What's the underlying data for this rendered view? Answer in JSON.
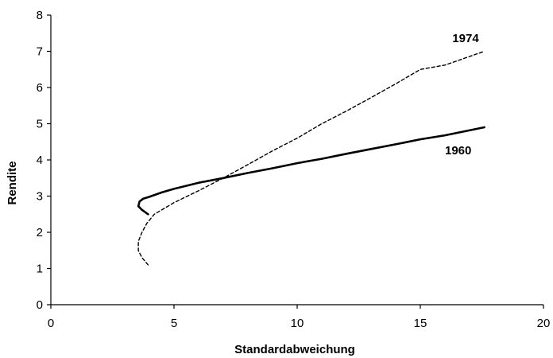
{
  "chart_data": {
    "type": "line",
    "title": "",
    "xlabel": "Standardabweichung",
    "ylabel": "Rendite",
    "xlim": [
      0,
      20
    ],
    "ylim": [
      0,
      8
    ],
    "xticks": [
      0,
      5,
      10,
      15,
      20
    ],
    "yticks": [
      0,
      1,
      2,
      3,
      4,
      5,
      6,
      7,
      8
    ],
    "grid": false,
    "legend": "none",
    "series": [
      {
        "name": "1960",
        "line_style": "solid",
        "color": "#000000",
        "points": [
          [
            3.95,
            2.5
          ],
          [
            3.7,
            2.62
          ],
          [
            3.55,
            2.72
          ],
          [
            3.6,
            2.85
          ],
          [
            3.75,
            2.93
          ],
          [
            4.0,
            2.98
          ],
          [
            4.5,
            3.1
          ],
          [
            5.0,
            3.2
          ],
          [
            6.0,
            3.37
          ],
          [
            7.0,
            3.5
          ],
          [
            8.0,
            3.64
          ],
          [
            9.0,
            3.77
          ],
          [
            10.0,
            3.91
          ],
          [
            11.0,
            4.03
          ],
          [
            12.0,
            4.17
          ],
          [
            13.0,
            4.3
          ],
          [
            14.0,
            4.43
          ],
          [
            15.0,
            4.57
          ],
          [
            16.0,
            4.68
          ],
          [
            17.6,
            4.9
          ]
        ]
      },
      {
        "name": "1974",
        "line_style": "dashed",
        "color": "#000000",
        "points": [
          [
            3.95,
            1.1
          ],
          [
            3.7,
            1.3
          ],
          [
            3.55,
            1.5
          ],
          [
            3.55,
            1.75
          ],
          [
            3.7,
            2.0
          ],
          [
            3.9,
            2.25
          ],
          [
            4.2,
            2.5
          ],
          [
            5.0,
            2.82
          ],
          [
            6.0,
            3.15
          ],
          [
            7.0,
            3.5
          ],
          [
            8.0,
            3.87
          ],
          [
            9.0,
            4.25
          ],
          [
            10.0,
            4.6
          ],
          [
            11.0,
            5.0
          ],
          [
            12.0,
            5.35
          ],
          [
            13.0,
            5.72
          ],
          [
            14.0,
            6.1
          ],
          [
            15.0,
            6.5
          ],
          [
            16.0,
            6.62
          ],
          [
            17.6,
            7.0
          ]
        ]
      }
    ]
  }
}
